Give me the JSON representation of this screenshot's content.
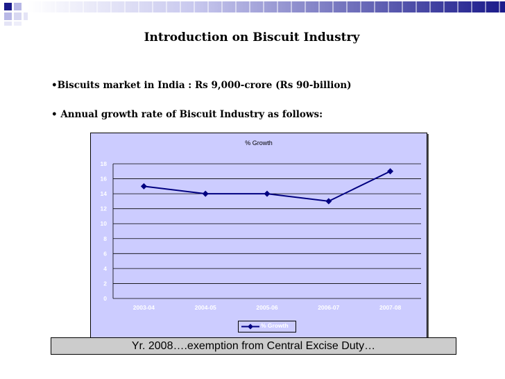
{
  "slide": {
    "title": "Introduction on Biscuit Industry",
    "bullets": [
      "•Biscuits market in India :  Rs 9,000-crore (Rs 90-billion)",
      "• Annual growth rate of Biscuit Industry as follows:"
    ],
    "footer": "Yr. 2008….exemption from Central Excise Duty…"
  },
  "colors": {
    "accent": "#000080",
    "plot_bg": "#ccccff",
    "footer_bg": "#cccccc"
  },
  "chart_data": {
    "type": "line",
    "title": "% Growth",
    "categories": [
      "2003-04",
      "2004-05",
      "2005-06",
      "2006-07",
      "2007-08"
    ],
    "series": [
      {
        "name": "% Growth",
        "values": [
          15,
          14,
          14,
          13,
          17
        ]
      }
    ],
    "ylim": [
      0,
      18
    ],
    "yticks": [
      0,
      2,
      4,
      6,
      8,
      10,
      12,
      14,
      16,
      18
    ],
    "legend": "bottom-center",
    "grid": true
  }
}
